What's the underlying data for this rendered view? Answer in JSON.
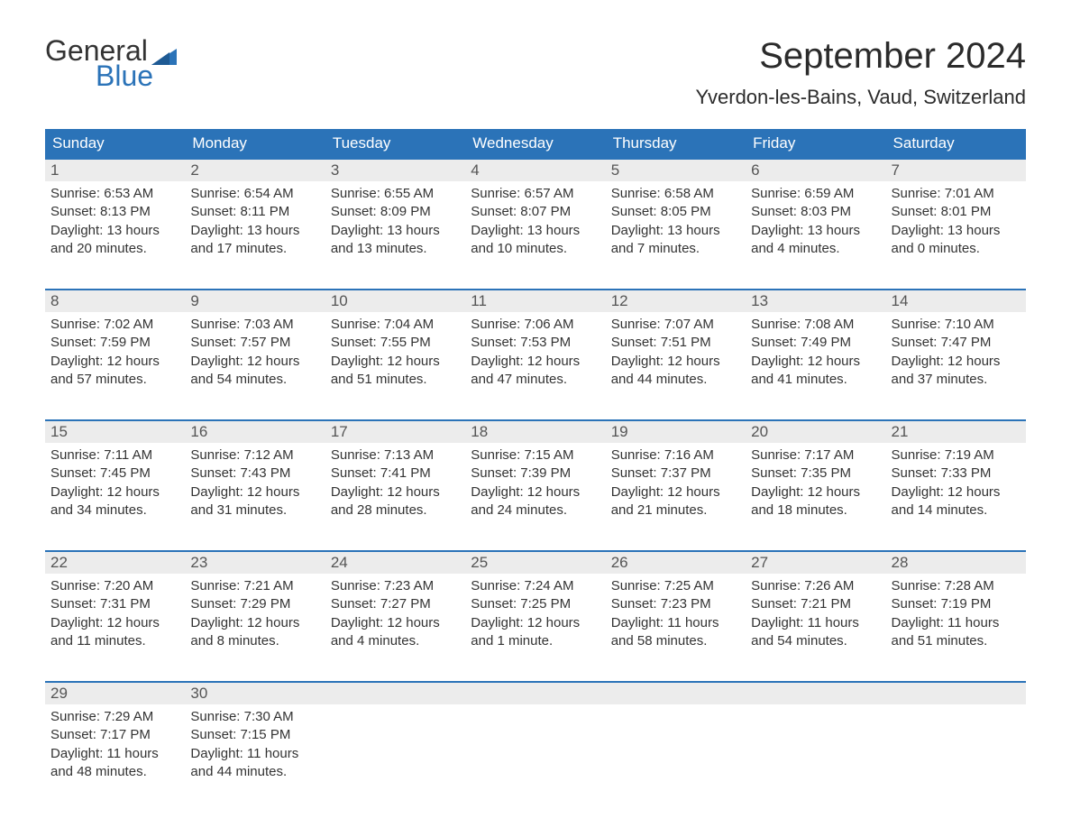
{
  "logo": {
    "text1": "General",
    "text2": "Blue"
  },
  "title": "September 2024",
  "location": "Yverdon-les-Bains, Vaud, Switzerland",
  "colors": {
    "header_bg": "#2b73b8",
    "header_text": "#ffffff",
    "daynum_bg": "#ececec",
    "week_border": "#2b73b8",
    "body_text": "#333333",
    "page_bg": "#ffffff"
  },
  "days_of_week": [
    "Sunday",
    "Monday",
    "Tuesday",
    "Wednesday",
    "Thursday",
    "Friday",
    "Saturday"
  ],
  "weeks": [
    [
      {
        "n": "1",
        "sunrise": "Sunrise: 6:53 AM",
        "sunset": "Sunset: 8:13 PM",
        "dl1": "Daylight: 13 hours",
        "dl2": "and 20 minutes."
      },
      {
        "n": "2",
        "sunrise": "Sunrise: 6:54 AM",
        "sunset": "Sunset: 8:11 PM",
        "dl1": "Daylight: 13 hours",
        "dl2": "and 17 minutes."
      },
      {
        "n": "3",
        "sunrise": "Sunrise: 6:55 AM",
        "sunset": "Sunset: 8:09 PM",
        "dl1": "Daylight: 13 hours",
        "dl2": "and 13 minutes."
      },
      {
        "n": "4",
        "sunrise": "Sunrise: 6:57 AM",
        "sunset": "Sunset: 8:07 PM",
        "dl1": "Daylight: 13 hours",
        "dl2": "and 10 minutes."
      },
      {
        "n": "5",
        "sunrise": "Sunrise: 6:58 AM",
        "sunset": "Sunset: 8:05 PM",
        "dl1": "Daylight: 13 hours",
        "dl2": "and 7 minutes."
      },
      {
        "n": "6",
        "sunrise": "Sunrise: 6:59 AM",
        "sunset": "Sunset: 8:03 PM",
        "dl1": "Daylight: 13 hours",
        "dl2": "and 4 minutes."
      },
      {
        "n": "7",
        "sunrise": "Sunrise: 7:01 AM",
        "sunset": "Sunset: 8:01 PM",
        "dl1": "Daylight: 13 hours",
        "dl2": "and 0 minutes."
      }
    ],
    [
      {
        "n": "8",
        "sunrise": "Sunrise: 7:02 AM",
        "sunset": "Sunset: 7:59 PM",
        "dl1": "Daylight: 12 hours",
        "dl2": "and 57 minutes."
      },
      {
        "n": "9",
        "sunrise": "Sunrise: 7:03 AM",
        "sunset": "Sunset: 7:57 PM",
        "dl1": "Daylight: 12 hours",
        "dl2": "and 54 minutes."
      },
      {
        "n": "10",
        "sunrise": "Sunrise: 7:04 AM",
        "sunset": "Sunset: 7:55 PM",
        "dl1": "Daylight: 12 hours",
        "dl2": "and 51 minutes."
      },
      {
        "n": "11",
        "sunrise": "Sunrise: 7:06 AM",
        "sunset": "Sunset: 7:53 PM",
        "dl1": "Daylight: 12 hours",
        "dl2": "and 47 minutes."
      },
      {
        "n": "12",
        "sunrise": "Sunrise: 7:07 AM",
        "sunset": "Sunset: 7:51 PM",
        "dl1": "Daylight: 12 hours",
        "dl2": "and 44 minutes."
      },
      {
        "n": "13",
        "sunrise": "Sunrise: 7:08 AM",
        "sunset": "Sunset: 7:49 PM",
        "dl1": "Daylight: 12 hours",
        "dl2": "and 41 minutes."
      },
      {
        "n": "14",
        "sunrise": "Sunrise: 7:10 AM",
        "sunset": "Sunset: 7:47 PM",
        "dl1": "Daylight: 12 hours",
        "dl2": "and 37 minutes."
      }
    ],
    [
      {
        "n": "15",
        "sunrise": "Sunrise: 7:11 AM",
        "sunset": "Sunset: 7:45 PM",
        "dl1": "Daylight: 12 hours",
        "dl2": "and 34 minutes."
      },
      {
        "n": "16",
        "sunrise": "Sunrise: 7:12 AM",
        "sunset": "Sunset: 7:43 PM",
        "dl1": "Daylight: 12 hours",
        "dl2": "and 31 minutes."
      },
      {
        "n": "17",
        "sunrise": "Sunrise: 7:13 AM",
        "sunset": "Sunset: 7:41 PM",
        "dl1": "Daylight: 12 hours",
        "dl2": "and 28 minutes."
      },
      {
        "n": "18",
        "sunrise": "Sunrise: 7:15 AM",
        "sunset": "Sunset: 7:39 PM",
        "dl1": "Daylight: 12 hours",
        "dl2": "and 24 minutes."
      },
      {
        "n": "19",
        "sunrise": "Sunrise: 7:16 AM",
        "sunset": "Sunset: 7:37 PM",
        "dl1": "Daylight: 12 hours",
        "dl2": "and 21 minutes."
      },
      {
        "n": "20",
        "sunrise": "Sunrise: 7:17 AM",
        "sunset": "Sunset: 7:35 PM",
        "dl1": "Daylight: 12 hours",
        "dl2": "and 18 minutes."
      },
      {
        "n": "21",
        "sunrise": "Sunrise: 7:19 AM",
        "sunset": "Sunset: 7:33 PM",
        "dl1": "Daylight: 12 hours",
        "dl2": "and 14 minutes."
      }
    ],
    [
      {
        "n": "22",
        "sunrise": "Sunrise: 7:20 AM",
        "sunset": "Sunset: 7:31 PM",
        "dl1": "Daylight: 12 hours",
        "dl2": "and 11 minutes."
      },
      {
        "n": "23",
        "sunrise": "Sunrise: 7:21 AM",
        "sunset": "Sunset: 7:29 PM",
        "dl1": "Daylight: 12 hours",
        "dl2": "and 8 minutes."
      },
      {
        "n": "24",
        "sunrise": "Sunrise: 7:23 AM",
        "sunset": "Sunset: 7:27 PM",
        "dl1": "Daylight: 12 hours",
        "dl2": "and 4 minutes."
      },
      {
        "n": "25",
        "sunrise": "Sunrise: 7:24 AM",
        "sunset": "Sunset: 7:25 PM",
        "dl1": "Daylight: 12 hours",
        "dl2": "and 1 minute."
      },
      {
        "n": "26",
        "sunrise": "Sunrise: 7:25 AM",
        "sunset": "Sunset: 7:23 PM",
        "dl1": "Daylight: 11 hours",
        "dl2": "and 58 minutes."
      },
      {
        "n": "27",
        "sunrise": "Sunrise: 7:26 AM",
        "sunset": "Sunset: 7:21 PM",
        "dl1": "Daylight: 11 hours",
        "dl2": "and 54 minutes."
      },
      {
        "n": "28",
        "sunrise": "Sunrise: 7:28 AM",
        "sunset": "Sunset: 7:19 PM",
        "dl1": "Daylight: 11 hours",
        "dl2": "and 51 minutes."
      }
    ],
    [
      {
        "n": "29",
        "sunrise": "Sunrise: 7:29 AM",
        "sunset": "Sunset: 7:17 PM",
        "dl1": "Daylight: 11 hours",
        "dl2": "and 48 minutes."
      },
      {
        "n": "30",
        "sunrise": "Sunrise: 7:30 AM",
        "sunset": "Sunset: 7:15 PM",
        "dl1": "Daylight: 11 hours",
        "dl2": "and 44 minutes."
      },
      {
        "empty": true
      },
      {
        "empty": true
      },
      {
        "empty": true
      },
      {
        "empty": true
      },
      {
        "empty": true
      }
    ]
  ]
}
